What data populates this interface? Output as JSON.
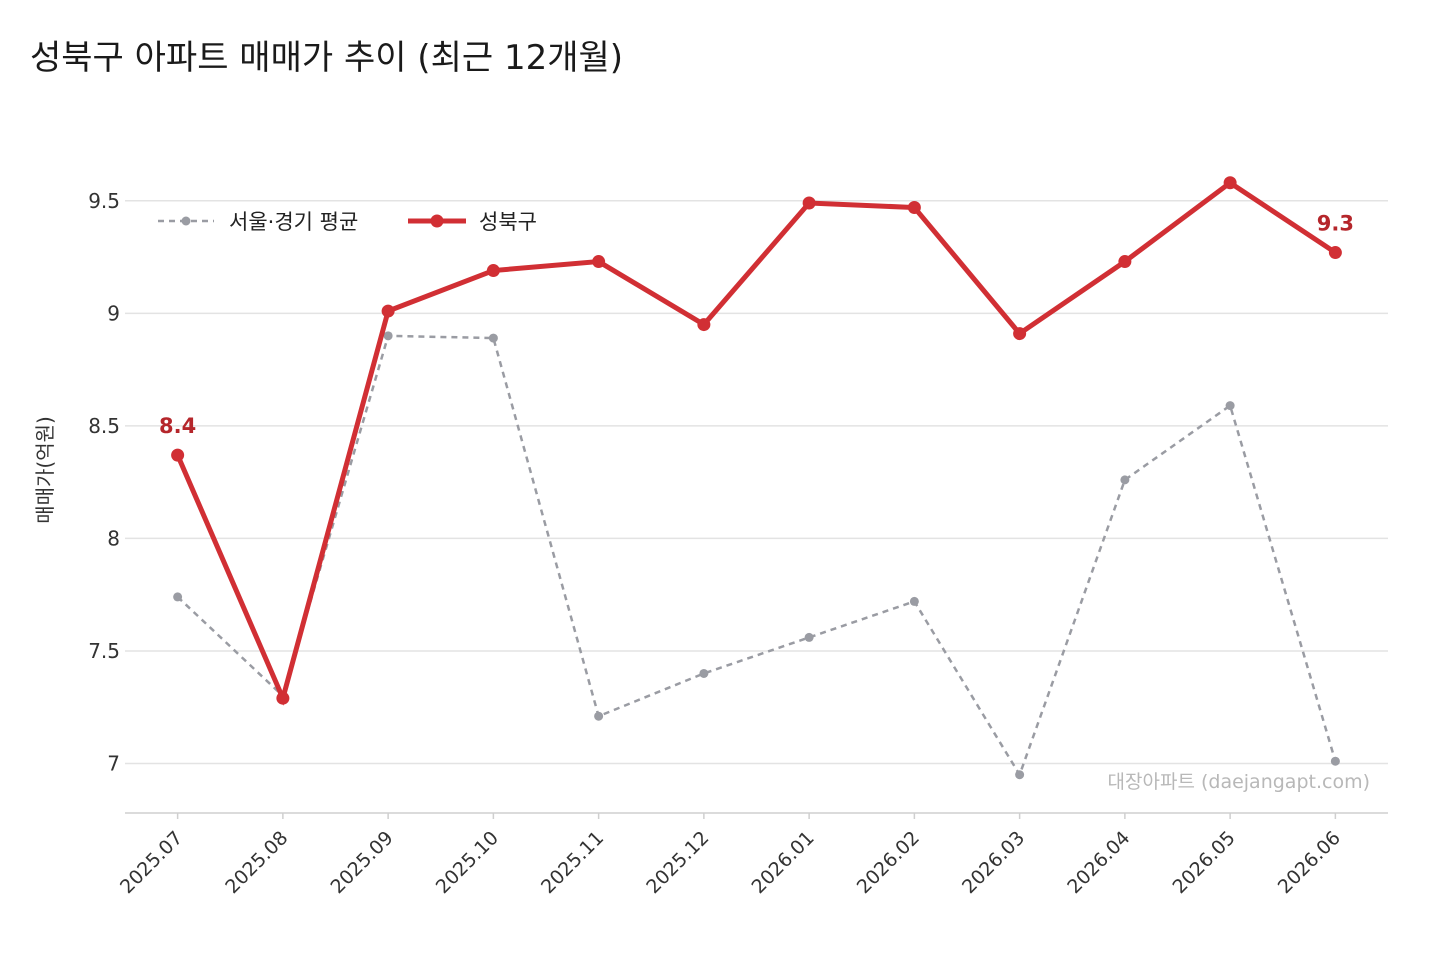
{
  "title": "성북구 아파트 매매가 추이 (최근 12개월)",
  "watermark": "대장아파트 (daejangapt.com)",
  "chart_data": {
    "type": "line",
    "categories": [
      "2025.07",
      "2025.08",
      "2025.09",
      "2025.10",
      "2025.11",
      "2025.12",
      "2026.01",
      "2026.02",
      "2026.03",
      "2026.04",
      "2026.05",
      "2026.06"
    ],
    "ylabel": "매매가(억원)",
    "xlabel": "",
    "ylim": [
      6.78,
      9.77
    ],
    "yticks": [
      7,
      7.5,
      8,
      8.5,
      9,
      9.5
    ],
    "ytick_labels": [
      "7",
      "7.5",
      "8",
      "8.5",
      "9",
      "9.5"
    ],
    "grid": "horizontal",
    "legend_position": "top-left",
    "series": [
      {
        "name": "서울·경기 평균",
        "color": "#9a9ca3",
        "style": "dashed",
        "values": [
          7.74,
          7.3,
          8.9,
          8.89,
          7.21,
          7.4,
          7.56,
          7.72,
          6.95,
          8.26,
          8.59,
          7.01
        ]
      },
      {
        "name": "성북구",
        "color": "#d12f34",
        "style": "solid",
        "values": [
          8.37,
          7.29,
          9.01,
          9.19,
          9.23,
          8.95,
          9.49,
          9.47,
          8.91,
          9.23,
          9.58,
          9.27
        ]
      }
    ],
    "annotations": [
      {
        "series": 1,
        "index": 0,
        "text": "8.4"
      },
      {
        "series": 1,
        "index": 11,
        "text": "9.3"
      }
    ]
  }
}
